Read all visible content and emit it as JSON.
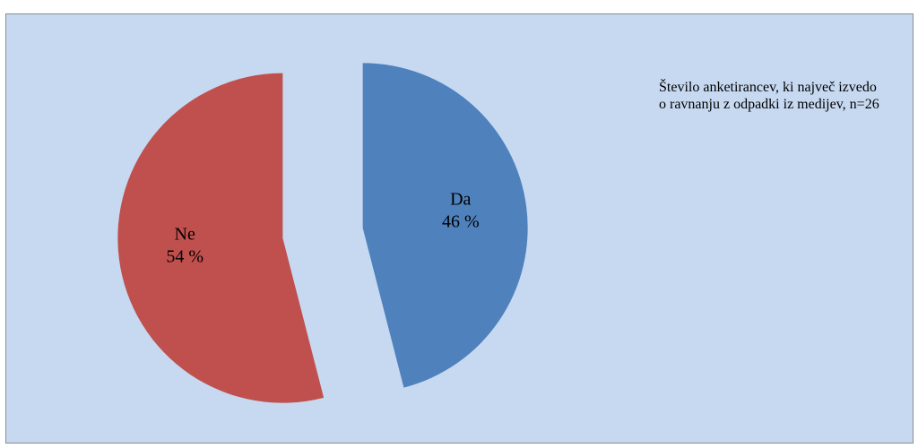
{
  "chart_data": {
    "type": "pie",
    "title": "Število anketirancev, ki največ izvedo o ravnanju z odpadki iz medijev, n=26",
    "slices": [
      {
        "label": "Da",
        "value": 46,
        "value_text": "46 %",
        "color": "#4f81bd"
      },
      {
        "label": "Ne",
        "value": 54,
        "value_text": "54 %",
        "color": "#c0504d"
      }
    ],
    "exploded": true,
    "background_color": "#c6d9f1",
    "border_color": "#8c8c8c"
  }
}
